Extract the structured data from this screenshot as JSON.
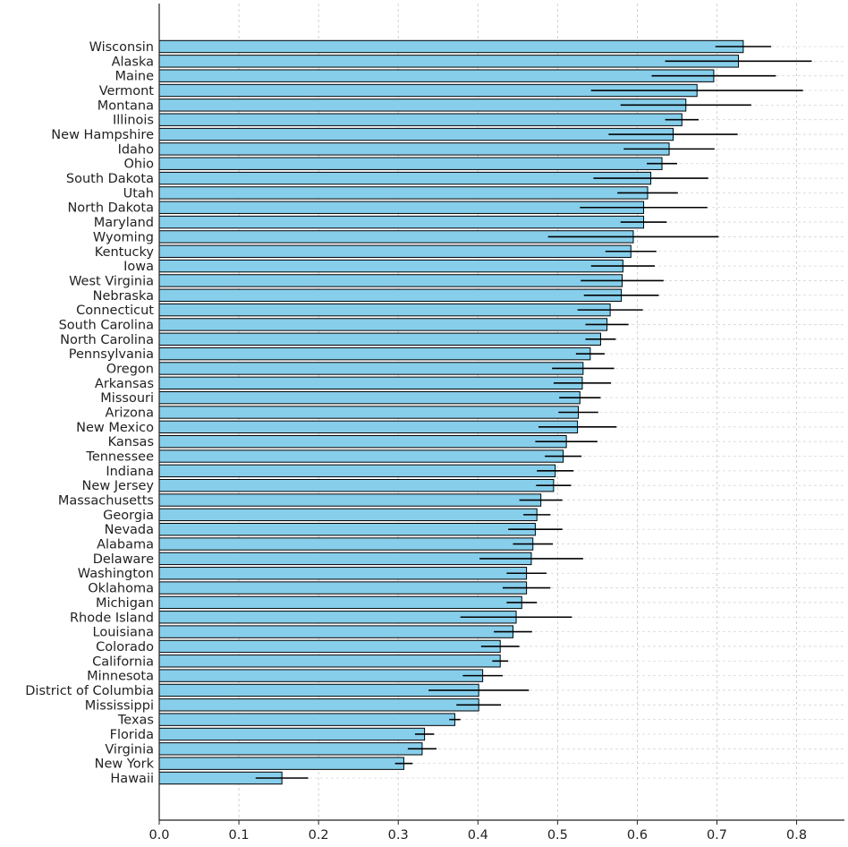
{
  "chart_data": {
    "type": "bar",
    "orientation": "horizontal",
    "title": "",
    "xlabel": "",
    "ylabel": "",
    "xlim": [
      0,
      0.86
    ],
    "xticks": [
      0.0,
      0.1,
      0.2,
      0.3,
      0.4,
      0.5,
      0.6,
      0.7,
      0.8
    ],
    "xtick_labels": [
      "0.0",
      "0.1",
      "0.2",
      "0.3",
      "0.4",
      "0.5",
      "0.6",
      "0.7",
      "0.8"
    ],
    "grid": true,
    "bar_color": "#87CEEB",
    "bar_edge_color": "#000000",
    "errorbar_color": "#000000",
    "categories": [
      "Wisconsin",
      "Alaska",
      "Maine",
      "Vermont",
      "Montana",
      "Illinois",
      "New Hampshire",
      "Idaho",
      "Ohio",
      "South Dakota",
      "Utah",
      "North Dakota",
      "Maryland",
      "Wyoming",
      "Kentucky",
      "Iowa",
      "West Virginia",
      "Nebraska",
      "Connecticut",
      "South Carolina",
      "North Carolina",
      "Pennsylvania",
      "Oregon",
      "Arkansas",
      "Missouri",
      "Arizona",
      "New Mexico",
      "Kansas",
      "Tennessee",
      "Indiana",
      "New Jersey",
      "Massachusetts",
      "Georgia",
      "Nevada",
      "Alabama",
      "Delaware",
      "Washington",
      "Oklahoma",
      "Michigan",
      "Rhode Island",
      "Louisiana",
      "Colorado",
      "California",
      "Minnesota",
      "District of Columbia",
      "Mississippi",
      "Texas",
      "Florida",
      "Virginia",
      "New York",
      "Hawaii"
    ],
    "values": [
      0.733,
      0.727,
      0.696,
      0.675,
      0.661,
      0.656,
      0.645,
      0.64,
      0.631,
      0.617,
      0.613,
      0.608,
      0.608,
      0.595,
      0.592,
      0.582,
      0.581,
      0.58,
      0.566,
      0.562,
      0.554,
      0.541,
      0.532,
      0.531,
      0.528,
      0.526,
      0.525,
      0.511,
      0.507,
      0.497,
      0.495,
      0.479,
      0.474,
      0.472,
      0.469,
      0.467,
      0.461,
      0.461,
      0.455,
      0.448,
      0.444,
      0.428,
      0.428,
      0.406,
      0.401,
      0.401,
      0.371,
      0.333,
      0.33,
      0.307,
      0.154
    ],
    "errors": [
      0.035,
      0.092,
      0.078,
      0.133,
      0.082,
      0.021,
      0.081,
      0.057,
      0.019,
      0.072,
      0.038,
      0.08,
      0.029,
      0.107,
      0.032,
      0.04,
      0.052,
      0.047,
      0.041,
      0.027,
      0.019,
      0.018,
      0.039,
      0.036,
      0.026,
      0.025,
      0.049,
      0.039,
      0.023,
      0.023,
      0.022,
      0.027,
      0.017,
      0.034,
      0.025,
      0.065,
      0.025,
      0.03,
      0.019,
      0.07,
      0.024,
      0.024,
      0.01,
      0.025,
      0.063,
      0.028,
      0.007,
      0.012,
      0.018,
      0.011,
      0.033
    ]
  }
}
